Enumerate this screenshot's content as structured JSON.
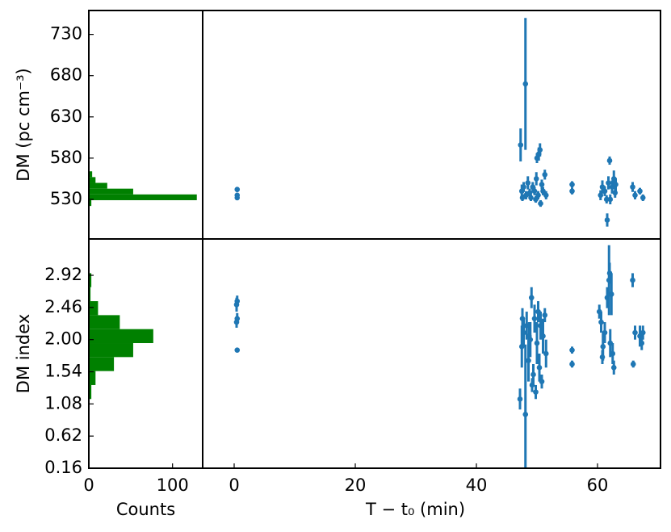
{
  "chart_data": [
    {
      "type": "histogram",
      "orientation": "horizontal",
      "color": "#008000",
      "ylabel": "DM (pc cm⁻³)",
      "bins": [
        522,
        529,
        536,
        543,
        550,
        557,
        564
      ],
      "values": [
        3,
        129,
        53,
        22,
        8,
        4
      ],
      "xlim": [
        0,
        136
      ],
      "ylim": [
        482,
        759
      ],
      "yticks": [
        530,
        580,
        630,
        680,
        730
      ]
    },
    {
      "type": "scatter",
      "color": "#1f77b4",
      "xlim": [
        -5.2,
        70.4
      ],
      "ylim": [
        482,
        759
      ],
      "x": [
        0.5,
        0.5,
        0.5,
        47.3,
        48.1,
        47.5,
        47.8,
        48.2,
        48.5,
        48.8,
        49.0,
        49.3,
        49.6,
        49.9,
        50.0,
        50.3,
        50.5,
        50.2,
        50.6,
        50.8,
        51.0,
        51.3,
        51.5,
        47.6,
        49.8,
        55.8,
        55.8,
        60.5,
        60.8,
        61.2,
        61.6,
        61.8,
        62.0,
        62.1,
        62.4,
        62.7,
        62.9,
        63.0,
        61.5,
        65.8,
        66.2,
        67.0,
        67.5
      ],
      "values": [
        532,
        535,
        542,
        596,
        670,
        540,
        545,
        535,
        550,
        538,
        532,
        545,
        540,
        555,
        580,
        585,
        590,
        535,
        525,
        548,
        540,
        560,
        535,
        532,
        530,
        540,
        548,
        535,
        545,
        540,
        505,
        550,
        577,
        530,
        545,
        555,
        538,
        548,
        530,
        545,
        535,
        540,
        532
      ],
      "errors": [
        3,
        3,
        3,
        20,
        80,
        8,
        6,
        5,
        8,
        5,
        4,
        6,
        5,
        8,
        6,
        8,
        8,
        5,
        4,
        6,
        5,
        6,
        5,
        4,
        4,
        4,
        4,
        6,
        8,
        6,
        8,
        8,
        5,
        6,
        8,
        10,
        6,
        8,
        5,
        6,
        5,
        4,
        4
      ]
    },
    {
      "type": "histogram",
      "orientation": "horizontal",
      "color": "#008000",
      "ylabel": "DM index",
      "xlabel": "Counts",
      "bins": [
        1.15,
        1.35,
        1.55,
        1.75,
        1.95,
        2.15,
        2.35,
        2.55,
        2.75,
        2.95
      ],
      "values": [
        3,
        8,
        30,
        53,
        77,
        37,
        11,
        2,
        3
      ],
      "xlim": [
        0,
        136
      ],
      "xticks": [
        0,
        100
      ],
      "ylim": [
        0.16,
        3.44
      ],
      "yticks": [
        0.16,
        0.62,
        1.08,
        1.54,
        {
          "value": 2,
          "label": "2.00"
        },
        2.46,
        2.92
      ]
    },
    {
      "type": "scatter",
      "color": "#1f77b4",
      "xlabel": "T − t₀ (min)",
      "xlim": [
        -5.2,
        70.4
      ],
      "xticks": [
        0,
        20,
        40,
        60
      ],
      "ylim": [
        0.16,
        3.44
      ],
      "x": [
        0.5,
        0.4,
        0.5,
        0.4,
        0.5,
        47.2,
        47.5,
        47.8,
        48.1,
        48.3,
        48.6,
        48.9,
        49.1,
        49.2,
        49.4,
        49.6,
        49.8,
        50.0,
        50.2,
        50.4,
        50.6,
        50.8,
        51.0,
        51.3,
        51.5,
        47.6,
        48.7,
        55.8,
        55.8,
        60.3,
        60.6,
        60.9,
        61.2,
        61.6,
        61.9,
        62.0,
        62.1,
        62.3,
        62.5,
        62.7,
        60.8,
        65.8,
        65.9,
        66.2,
        67.0,
        67.5,
        67.3
      ],
      "values": [
        2.55,
        2.5,
        2.3,
        2.25,
        1.85,
        1.15,
        1.9,
        2.1,
        0.93,
        2.2,
        1.7,
        2.0,
        2.6,
        1.35,
        1.5,
        2.3,
        1.25,
        1.95,
        2.4,
        1.6,
        2.2,
        1.4,
        2.05,
        2.35,
        1.8,
        2.3,
        2.05,
        1.85,
        1.65,
        2.4,
        2.25,
        1.9,
        2.1,
        2.6,
        2.85,
        2.95,
        1.95,
        2.65,
        1.8,
        1.6,
        1.75,
        2.85,
        1.65,
        2.1,
        2.05,
        2.1,
        1.95
      ],
      "errors": [
        0.08,
        0.1,
        0.08,
        0.08,
        0.03,
        0.15,
        0.3,
        0.2,
        1.0,
        0.2,
        0.3,
        0.25,
        0.15,
        0.1,
        0.15,
        0.2,
        0.1,
        0.3,
        0.15,
        0.2,
        0.2,
        0.1,
        0.25,
        0.1,
        0.2,
        0.15,
        0.2,
        0.05,
        0.05,
        0.1,
        0.15,
        0.2,
        0.15,
        0.15,
        0.5,
        0.15,
        0.2,
        0.3,
        0.15,
        0.1,
        0.1,
        0.1,
        0.05,
        0.1,
        0.15,
        0.1,
        0.1
      ]
    }
  ]
}
